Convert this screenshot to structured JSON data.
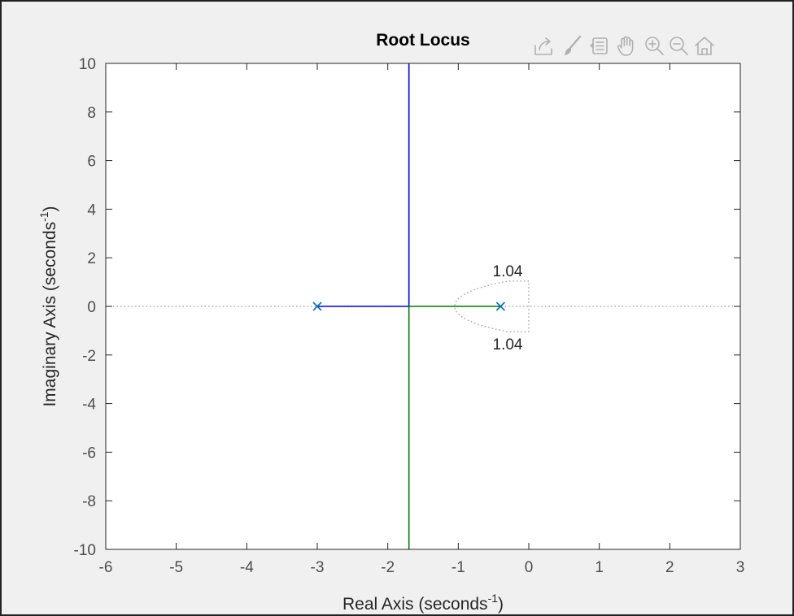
{
  "chart_data": {
    "type": "line",
    "title": "Root Locus",
    "xlabel": {
      "base": "Real Axis (seconds",
      "sup": "-1",
      "tail": ")"
    },
    "ylabel": {
      "base": "Imaginary Axis (seconds",
      "sup": "-1",
      "tail": ")"
    },
    "xlim": [
      -6,
      3
    ],
    "ylim": [
      -10,
      10
    ],
    "xticks": [
      -6,
      -5,
      -4,
      -3,
      -2,
      -1,
      0,
      1,
      2,
      3
    ],
    "yticks": [
      -10,
      -8,
      -6,
      -4,
      -2,
      0,
      2,
      4,
      6,
      8,
      10
    ],
    "grid": false,
    "series": [
      {
        "color": "#0000ff",
        "points": [
          [
            -3,
            0
          ],
          [
            -1.7,
            0
          ],
          [
            -1.7,
            10
          ]
        ]
      },
      {
        "color": "#008000",
        "points": [
          [
            -0.4,
            0
          ],
          [
            -1.7,
            0
          ],
          [
            -1.7,
            -10
          ]
        ]
      }
    ],
    "poles": [
      [
        -3,
        0
      ],
      [
        -0.4,
        0
      ]
    ],
    "pole_color": "#0072bd",
    "reference_color": "#999999",
    "annotations": [
      {
        "text": "1.04",
        "x": -0.3,
        "y": 1.04
      },
      {
        "text": "1.04",
        "x": -0.3,
        "y": -1.04
      }
    ]
  },
  "toolbar": {
    "icons": [
      "export-icon",
      "brush-icon",
      "data-tips-icon",
      "pan-hand-icon",
      "zoom-in-icon",
      "zoom-out-icon",
      "home-icon"
    ],
    "icon_color": "#b0b0b0"
  }
}
